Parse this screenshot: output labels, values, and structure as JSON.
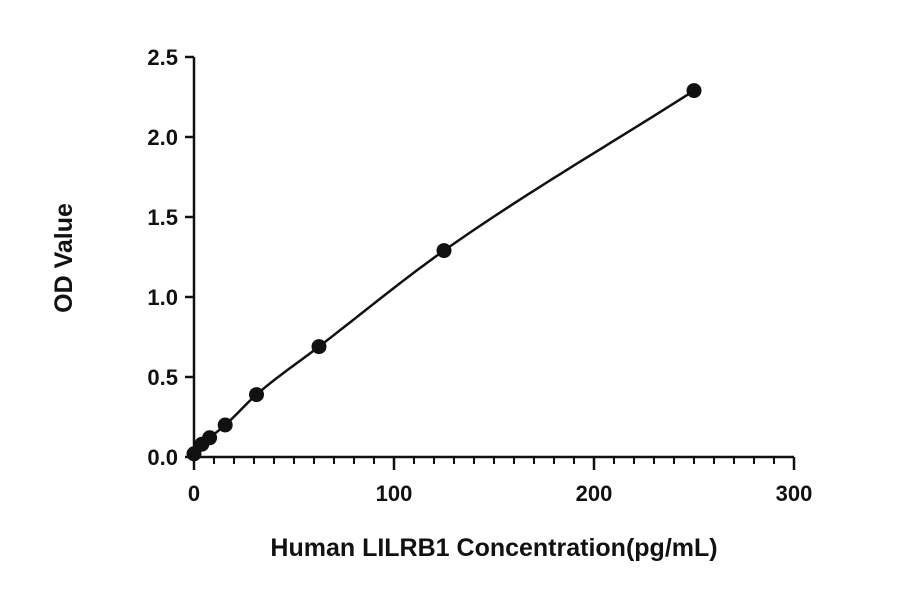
{
  "chart_data": {
    "type": "scatter",
    "title": "",
    "xlabel": "Human LILRB1 Concentration(pg/mL)",
    "ylabel": "OD Value",
    "xlim": [
      0,
      300
    ],
    "ylim": [
      0,
      2.5
    ],
    "x_ticks": [
      "0",
      "100",
      "200",
      "300"
    ],
    "y_ticks": [
      "0.0",
      "0.5",
      "1.0",
      "1.5",
      "2.0",
      "2.5"
    ],
    "grid": false,
    "legend": "none",
    "fit_curve": true,
    "series": [
      {
        "x": [
          0,
          3.9,
          7.8,
          15.6,
          31.25,
          62.5,
          125,
          250
        ],
        "y": [
          0.02,
          0.08,
          0.12,
          0.2,
          0.39,
          0.69,
          1.29,
          2.29
        ]
      }
    ],
    "colors": {
      "points": "#111111",
      "line": "#111111",
      "axes": "#111111"
    }
  }
}
